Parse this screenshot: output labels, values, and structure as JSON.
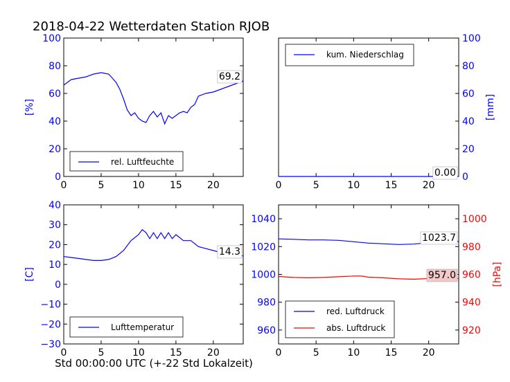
{
  "figure": {
    "title": "2018-04-22 Wetterdaten Station RJOB"
  },
  "chart_data": [
    {
      "id": "humidity",
      "type": "line",
      "xlim": [
        0,
        24
      ],
      "ylim": [
        0,
        100
      ],
      "xticks": [
        "0",
        "5",
        "10",
        "15",
        "20"
      ],
      "yticks": [
        "0",
        "20",
        "40",
        "60",
        "80",
        "100"
      ],
      "ylabel": "[%]",
      "ylabel_color": "#0000ff",
      "legend_position": "lower-left",
      "series": [
        {
          "name": "rel. Luftfeuchte",
          "color": "#0000ff",
          "x": [
            0,
            0.5,
            1,
            2,
            3,
            4,
            5,
            6,
            7,
            7.5,
            8,
            8.5,
            9,
            9.5,
            10,
            10.5,
            11,
            11.5,
            12,
            12.5,
            13,
            13.5,
            14,
            14.5,
            15,
            15.5,
            16,
            16.5,
            17,
            17.5,
            18,
            19,
            20,
            21,
            22,
            23,
            24
          ],
          "y": [
            66,
            68,
            70,
            71,
            72,
            74,
            75,
            74,
            68,
            63,
            56,
            48,
            44,
            46,
            42,
            40,
            39,
            44,
            47,
            43,
            46,
            38,
            44,
            42,
            44,
            46,
            47,
            46,
            50,
            52,
            58,
            60,
            61,
            63,
            65,
            67,
            69
          ]
        }
      ],
      "last_value_label": "69.2"
    },
    {
      "id": "precipitation",
      "type": "line",
      "xlim": [
        0,
        24
      ],
      "ylim": [
        0,
        100
      ],
      "xticks": [
        "0",
        "5",
        "10",
        "15",
        "20"
      ],
      "yticks": [
        "0",
        "20",
        "40",
        "60",
        "80",
        "100"
      ],
      "ylabel": "[mm]",
      "ylabel_color": "#0000ff",
      "legend_position": "top-left",
      "series": [
        {
          "name": "kum. Niederschlag",
          "color": "#0000ff",
          "x": [
            0,
            24
          ],
          "y": [
            0,
            0
          ]
        }
      ],
      "last_value_label": "0.00"
    },
    {
      "id": "temperature",
      "type": "line",
      "xlim": [
        0,
        24
      ],
      "ylim": [
        -30,
        40
      ],
      "xticks": [
        "0",
        "5",
        "10",
        "15",
        "20"
      ],
      "yticks": [
        "−30",
        "−20",
        "−10",
        "0",
        "10",
        "20",
        "30",
        "40"
      ],
      "ylabel": "[C]",
      "ylabel_color": "#0000ff",
      "xlabel": "Std 00:00:00 UTC (+-22 Std Lokalzeit)",
      "legend_position": "lower-left",
      "series": [
        {
          "name": "Lufttemperatur",
          "color": "#0000ff",
          "x": [
            0,
            1,
            2,
            3,
            4,
            5,
            6,
            7,
            8,
            9,
            10,
            10.5,
            11,
            11.5,
            12,
            12.5,
            13,
            13.5,
            14,
            14.5,
            15,
            16,
            17,
            18,
            19,
            20,
            21,
            22,
            23,
            24
          ],
          "y": [
            14,
            13.5,
            13,
            12.5,
            12,
            12,
            12.5,
            14,
            17,
            22,
            25,
            27.5,
            26,
            23,
            26,
            23,
            26,
            23,
            26,
            23,
            25,
            22,
            22,
            19,
            18,
            17,
            16,
            15.5,
            15,
            14.3
          ]
        }
      ],
      "last_value_label": "14.3"
    },
    {
      "id": "pressure",
      "type": "line",
      "xlim": [
        0,
        24
      ],
      "ylim": [
        950,
        1050
      ],
      "y2lim": [
        910,
        1010
      ],
      "xticks": [
        "0",
        "5",
        "10",
        "15",
        "20"
      ],
      "yticks": [
        "960",
        "980",
        "1000",
        "1020",
        "1040"
      ],
      "y2ticks": [
        "920",
        "940",
        "960",
        "980",
        "1000"
      ],
      "ylabel_right": "[hPa]",
      "ylabel_right_color": "#ff0000",
      "legend_position": "lower-left",
      "series": [
        {
          "name": "red. Luftdruck",
          "color": "#0000ff",
          "axis": "left",
          "x": [
            0,
            2,
            4,
            6,
            8,
            10,
            11,
            12,
            14,
            16,
            18,
            20,
            22,
            24
          ],
          "y": [
            1025.5,
            1025.2,
            1024.8,
            1024.8,
            1024.5,
            1023.5,
            1023.0,
            1022.5,
            1022.0,
            1021.5,
            1021.8,
            1022.8,
            1023.2,
            1023.7
          ]
        },
        {
          "name": "abs. Luftdruck",
          "color": "#ff0000",
          "axis": "right",
          "x": [
            0,
            2,
            4,
            6,
            8,
            10,
            11,
            12,
            14,
            16,
            18,
            20,
            22,
            24
          ],
          "y": [
            958.5,
            957.8,
            957.5,
            957.8,
            958.3,
            958.8,
            958.8,
            958.0,
            957.5,
            956.8,
            956.5,
            957.0,
            957.3,
            957.0
          ]
        }
      ],
      "last_value_label": "1023.7",
      "last_value_label_2": "957.0"
    }
  ]
}
